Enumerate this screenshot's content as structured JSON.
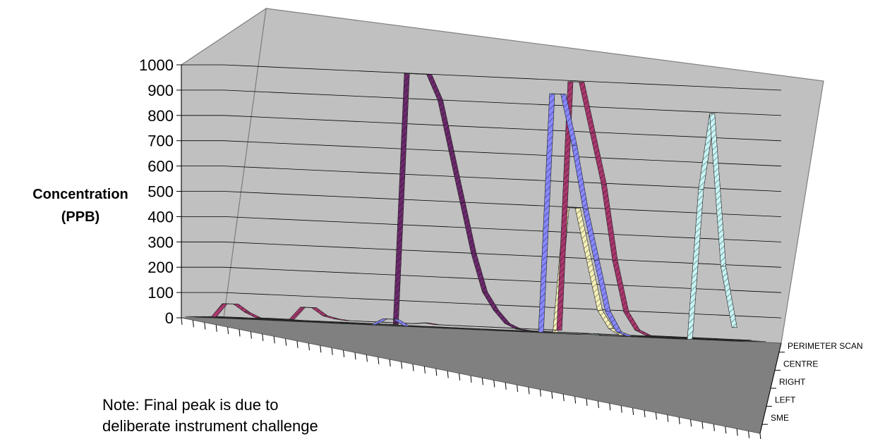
{
  "chart_data": {
    "type": "area",
    "style": "3d-ribbon",
    "ylabel": "Concentration (PPB)",
    "ylabel_lines": [
      "Concentration",
      "(PPB)"
    ],
    "ylim": [
      0,
      1000
    ],
    "yticks": [
      0,
      100,
      200,
      300,
      400,
      500,
      600,
      700,
      800,
      900,
      1000
    ],
    "x_count": 50,
    "grid": true,
    "series_axis_labels": [
      "PERIMETER SCAN",
      "CENTRE",
      "RIGHT",
      "LEFT",
      "SME"
    ],
    "series": [
      {
        "name": "PERIMETER SCAN",
        "color": "#6b2a6b",
        "values": [
          5,
          5,
          5,
          5,
          5,
          5,
          5,
          5,
          5,
          5,
          5,
          5,
          5,
          5,
          5,
          5,
          5,
          1000,
          1000,
          1000,
          900,
          700,
          500,
          300,
          150,
          80,
          30,
          10,
          5,
          5,
          5,
          5,
          5,
          5,
          5,
          5,
          5,
          5,
          5,
          5,
          5,
          5,
          5,
          5,
          5,
          5,
          5,
          5,
          5,
          5
        ]
      },
      {
        "name": "CENTRE",
        "color": "#f5f0b8",
        "values": [
          5,
          5,
          5,
          5,
          5,
          5,
          5,
          5,
          5,
          5,
          5,
          5,
          5,
          5,
          5,
          5,
          5,
          5,
          5,
          5,
          5,
          5,
          5,
          5,
          5,
          5,
          5,
          5,
          5,
          5,
          5,
          5,
          500,
          500,
          300,
          100,
          30,
          5,
          5,
          5,
          5,
          5,
          5,
          5,
          5,
          5,
          5,
          5,
          5,
          5
        ]
      },
      {
        "name": "RIGHT",
        "color": "#a8386e",
        "values": [
          5,
          5,
          60,
          60,
          30,
          10,
          10,
          10,
          10,
          60,
          60,
          30,
          20,
          15,
          15,
          15,
          15,
          15,
          15,
          15,
          20,
          15,
          15,
          15,
          15,
          15,
          15,
          15,
          15,
          15,
          15,
          15,
          15,
          1000,
          1000,
          800,
          600,
          300,
          100,
          30,
          10,
          10,
          10,
          10,
          10,
          10,
          10,
          10,
          10,
          10
        ]
      },
      {
        "name": "LEFT",
        "color": "#8888ff",
        "values": [
          5,
          5,
          5,
          5,
          5,
          5,
          5,
          5,
          5,
          5,
          5,
          5,
          5,
          5,
          5,
          5,
          5,
          30,
          30,
          5,
          5,
          5,
          5,
          5,
          5,
          5,
          5,
          5,
          5,
          5,
          5,
          5,
          950,
          950,
          750,
          500,
          300,
          100,
          20,
          5,
          5,
          5,
          5,
          5,
          5,
          5,
          5,
          5,
          5,
          5
        ]
      },
      {
        "name": "SME",
        "color": "#c8f4f4",
        "values": [
          5,
          5,
          5,
          5,
          5,
          5,
          5,
          5,
          5,
          5,
          5,
          5,
          5,
          5,
          5,
          5,
          5,
          5,
          5,
          5,
          5,
          5,
          5,
          5,
          5,
          5,
          5,
          5,
          5,
          5,
          5,
          5,
          5,
          5,
          5,
          5,
          10,
          5,
          5,
          5,
          5,
          5,
          5,
          5,
          5,
          5,
          600,
          900,
          300,
          60
        ]
      }
    ],
    "annotation": [
      "Note: Final peak is due to",
      "deliberate instrument challenge"
    ]
  }
}
